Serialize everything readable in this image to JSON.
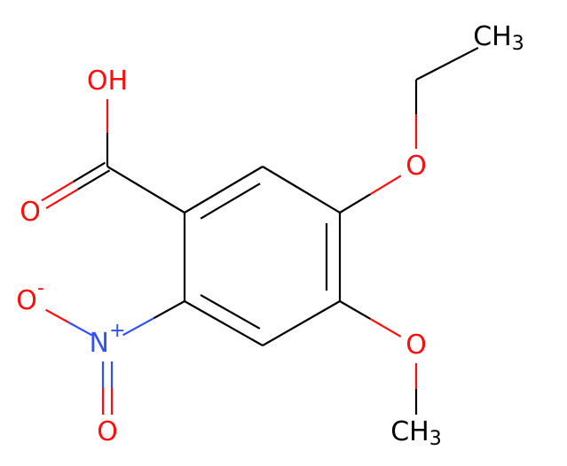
{
  "atoms": [
    {
      "text": "OH"
    },
    {
      "text": "O"
    },
    {
      "text": "O",
      "charge": "-"
    },
    {
      "text": "N",
      "charge": "+"
    },
    {
      "text": "O"
    },
    {
      "text": "O"
    },
    {
      "text": "CH",
      "sub": "3"
    },
    {
      "text": "O"
    },
    {
      "text": "CH",
      "sub": "3"
    }
  ]
}
